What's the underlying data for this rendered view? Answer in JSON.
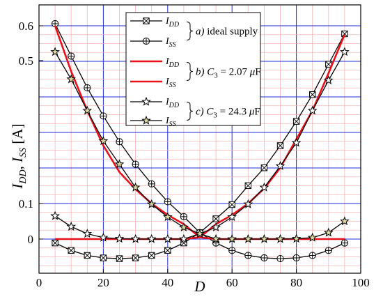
{
  "chart_data": {
    "type": "line",
    "title": "",
    "xlabel": "D",
    "ylabel": "I_DD, I_SS [A]",
    "xlim": [
      0,
      100
    ],
    "x_ticks": [
      0,
      20,
      40,
      60,
      80,
      100
    ],
    "y_ticks": [
      {
        "value": 0,
        "label": "0"
      },
      {
        "value": 0.1,
        "label": "0.1"
      },
      {
        "value": 0.5,
        "label": "0.5"
      },
      {
        "value": 0.6,
        "label": "0.6"
      }
    ],
    "y_axis_note": "broken y axis: ticks 0.1 and 0.5 are adjacent",
    "grid": true,
    "legend_position": "top-center",
    "legend_groups": [
      {
        "label": "a) ideal supply",
        "parts": [
          "a)",
          "ideal supply"
        ]
      },
      {
        "label": "b) C3 = 2.07 μF",
        "parts": [
          "b)",
          "C",
          "3",
          "= 2.07",
          "μ",
          "F"
        ]
      },
      {
        "label": "c) C3 = 24.3 μF",
        "parts": [
          "c)",
          "C",
          "3",
          "= 24.3",
          "μ",
          "F"
        ]
      }
    ],
    "series": [
      {
        "name": "I_DD",
        "label_main": "I",
        "label_sub": "DD",
        "group": "a",
        "marker": "boxed-x",
        "color": "#000000",
        "x": [
          5,
          10,
          15,
          20,
          25,
          30,
          35,
          40,
          45,
          50,
          55,
          60,
          65,
          70,
          75,
          80,
          85,
          90,
          95
        ],
        "y": [
          -0.011,
          -0.032,
          -0.046,
          -0.053,
          -0.055,
          -0.053,
          -0.046,
          -0.032,
          -0.011,
          0.018,
          0.057,
          0.097,
          0.15,
          0.2,
          0.262,
          0.33,
          0.405,
          0.49,
          0.577
        ]
      },
      {
        "name": "I_SS",
        "label_main": "I",
        "label_sub": "SS",
        "group": "a",
        "marker": "circle-plus",
        "color": "#000000",
        "x": [
          5,
          10,
          15,
          20,
          25,
          30,
          35,
          40,
          45,
          50,
          55,
          60,
          65,
          70,
          75,
          80,
          85,
          90,
          95
        ],
        "y": [
          0.606,
          0.513,
          0.424,
          0.345,
          0.273,
          0.21,
          0.155,
          0.105,
          0.063,
          0.018,
          -0.011,
          -0.032,
          -0.046,
          -0.053,
          -0.055,
          -0.053,
          -0.046,
          -0.032,
          -0.011
        ]
      },
      {
        "name": "I_DD",
        "label_main": "I",
        "label_sub": "DD",
        "group": "b",
        "marker": "none",
        "color": "#e8101a",
        "x": [
          5,
          10,
          15,
          20,
          25,
          30,
          35,
          40,
          45,
          50,
          55,
          60,
          65,
          70,
          75,
          80,
          85,
          90,
          95
        ],
        "y": [
          0,
          0,
          0,
          0,
          0,
          0,
          0,
          0,
          0,
          0.005,
          0.042,
          0.068,
          0.1,
          0.142,
          0.2,
          0.28,
          0.36,
          0.465,
          0.575
        ]
      },
      {
        "name": "I_SS",
        "label_main": "I",
        "label_sub": "SS",
        "group": "b",
        "marker": "none",
        "color": "#e8101a",
        "x": [
          5,
          10,
          15,
          20,
          25,
          30,
          35,
          40,
          45,
          50,
          55,
          60,
          65,
          70,
          75,
          80,
          85,
          90,
          95
        ],
        "y": [
          0.6,
          0.47,
          0.36,
          0.262,
          0.188,
          0.14,
          0.1,
          0.068,
          0.042,
          0.005,
          0,
          0,
          0,
          0,
          0,
          0,
          0,
          0,
          0
        ]
      },
      {
        "name": "I_DD",
        "label_main": "I",
        "label_sub": "DD",
        "group": "c",
        "marker": "star-open",
        "color": "#000000",
        "x": [
          5,
          10,
          15,
          20,
          25,
          30,
          35,
          40,
          45,
          50,
          55,
          60,
          65,
          70,
          75,
          80,
          85,
          90,
          95
        ],
        "y": [
          0.065,
          0.035,
          0.015,
          0.004,
          0.001,
          0,
          0,
          0,
          0,
          0.015,
          0.033,
          0.062,
          0.098,
          0.145,
          0.205,
          0.27,
          0.36,
          0.445,
          0.525
        ]
      },
      {
        "name": "I_SS",
        "label_main": "I",
        "label_sub": "SS",
        "group": "c",
        "marker": "star-filled",
        "color": "#000000",
        "x": [
          5,
          10,
          15,
          20,
          25,
          30,
          35,
          40,
          45,
          50,
          55,
          60,
          65,
          70,
          75,
          80,
          85,
          90,
          95
        ],
        "y": [
          0.525,
          0.448,
          0.36,
          0.275,
          0.21,
          0.145,
          0.098,
          0.062,
          0.033,
          0.015,
          0,
          0,
          0,
          0,
          0,
          0.001,
          0.004,
          0.018,
          0.05
        ]
      }
    ]
  }
}
